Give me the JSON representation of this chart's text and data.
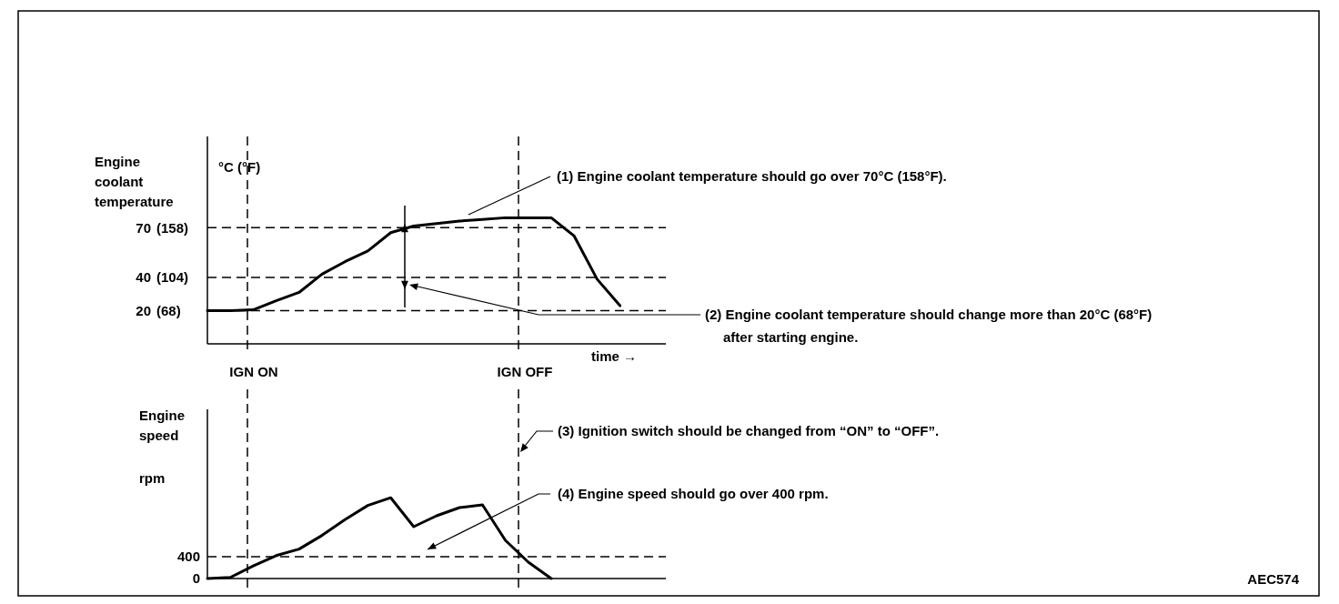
{
  "chart_data": [
    {
      "type": "line",
      "ylabel": "Engine coolant temperature",
      "xlabel": "time →",
      "categories": [
        null,
        null,
        null,
        null,
        null,
        null,
        null,
        null,
        null,
        null,
        null,
        null,
        null,
        null,
        null,
        null,
        null,
        null,
        null,
        null,
        null
      ],
      "ylim": [
        0,
        125
      ],
      "yticks": [
        20,
        40,
        70
      ],
      "y2lim": [
        32,
        257
      ],
      "y2ticks": [
        {
          "value": 68,
          "label": "(68)"
        },
        {
          "value": 104,
          "label": "(104)"
        },
        {
          "value": 158,
          "label": "(158)"
        }
      ],
      "tick_labels": "y",
      "marker": "none",
      "line_style": "solid",
      "series": [
        {
          "color": "#000000",
          "values": [
            20,
            20,
            20.5,
            26,
            31,
            42,
            49.5,
            56,
            67,
            71,
            72.5,
            74,
            75,
            76,
            76,
            76,
            65,
            39,
            23,
            null,
            null
          ]
        }
      ],
      "ref_lines": [
        {
          "axis": "y",
          "value": 70,
          "line_style": "dashed"
        },
        {
          "axis": "y",
          "value": 40,
          "line_style": "dashed"
        },
        {
          "axis": "y",
          "value": 20,
          "line_style": "dashed"
        }
      ],
      "annotations": [
        "°C (°F)",
        "(1)  Engine coolant temperature should go over 70°C (158°F).",
        "(2)  Engine coolant temperature should change more than 20°C (68°F) after starting engine.",
        "IGN ON",
        "IGN OFF"
      ]
    },
    {
      "type": "line",
      "ylabel": "Engine speed",
      "categories": [
        null,
        null,
        null,
        null,
        null,
        null,
        null,
        null,
        null,
        null,
        null,
        null,
        null,
        null,
        null,
        null,
        null,
        null,
        null,
        null,
        null
      ],
      "ylim": [
        0,
        3100
      ],
      "yticks": [
        0,
        400
      ],
      "tick_labels": "y",
      "marker": "none",
      "line_style": "solid",
      "series": [
        {
          "color": "#000000",
          "values": [
            0,
            20,
            230,
            420,
            540,
            790,
            1080,
            1340,
            1480,
            950,
            1150,
            1300,
            1350,
            700,
            300,
            0,
            null,
            null,
            null,
            null,
            null
          ]
        }
      ],
      "ref_lines": [
        {
          "axis": "y",
          "value": 400,
          "line_style": "dashed"
        }
      ],
      "annotations": [
        "rpm",
        "(3)  Ignition switch should be changed from “ON” to “OFF”.",
        "(4)  Engine speed should go over 400 rpm.",
        "AEC574"
      ]
    }
  ]
}
